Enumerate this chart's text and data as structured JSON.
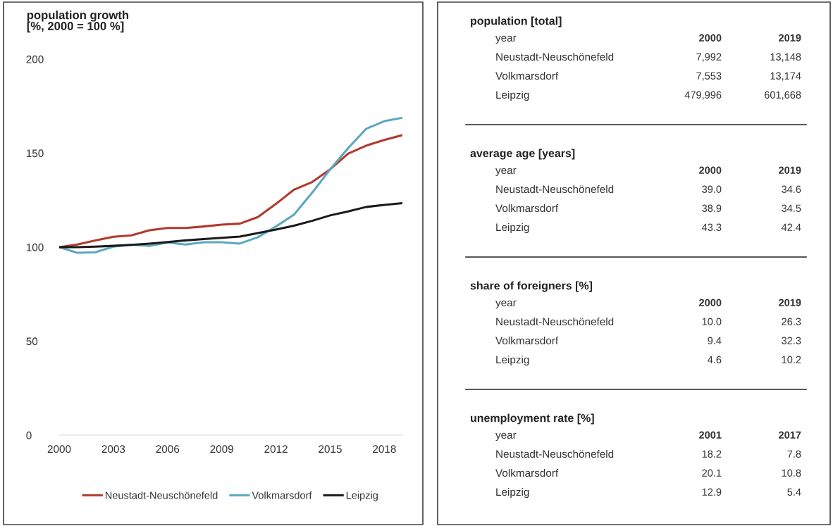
{
  "chart_data": [
    {
      "type": "line",
      "title": "population growth",
      "subtitle": "[%, 2000 = 100 %]",
      "x": [
        2000,
        2001,
        2002,
        2003,
        2004,
        2005,
        2006,
        2007,
        2008,
        2009,
        2010,
        2011,
        2012,
        2013,
        2014,
        2015,
        2016,
        2017,
        2018,
        2019
      ],
      "series": [
        {
          "name": "Neustadt-Neuschönefeld",
          "color": "#b03a2e",
          "values": [
            100,
            101.4,
            103.6,
            105.5,
            106.3,
            109,
            110.2,
            110.2,
            111,
            112,
            112.5,
            116,
            123,
            130.6,
            134.6,
            141.4,
            149.8,
            154,
            157,
            159.6
          ]
        },
        {
          "name": "Volkmarsdorf",
          "color": "#5ba8bf",
          "values": [
            100,
            97,
            97.3,
            100.3,
            101.3,
            100.7,
            102.5,
            101.4,
            102.6,
            102.6,
            101.9,
            105.3,
            111,
            117.3,
            128.9,
            141.4,
            152.7,
            163,
            167,
            168.8
          ]
        },
        {
          "name": "Leipzig",
          "color": "#1a1a1a",
          "values": [
            100,
            100,
            100.3,
            100.7,
            101.2,
            101.9,
            102.7,
            103.6,
            104.3,
            105,
            105.6,
            107.5,
            109.4,
            111.4,
            114,
            116.9,
            119,
            121.4,
            122.5,
            123.4
          ]
        }
      ],
      "xlim": [
        2000,
        2019
      ],
      "xticks": [
        2000,
        2003,
        2006,
        2009,
        2012,
        2015,
        2018
      ],
      "ylim": [
        0,
        200
      ],
      "yticks": [
        0,
        50,
        100,
        150,
        200
      ],
      "grid": false,
      "legend": "bottom",
      "line_style": "solid",
      "marker": "none"
    },
    {
      "type": "other",
      "annotations": [
        "population [total]",
        "year",
        "2000",
        "2019",
        "Neustadt-Neuschönefeld",
        "7,992",
        "13,148",
        "Volkmarsdorf",
        "7,553",
        "13,174",
        "Leipzig",
        "479,996",
        "601,668",
        "average age [years]",
        "year",
        "2000",
        "2019",
        "Neustadt-Neuschönefeld",
        "39.0",
        "34.6",
        "Volkmarsdorf",
        "38.9",
        "34.5",
        "Leipzig",
        "43.3",
        "42.4",
        "share of foreigners [%]",
        "year",
        "2000",
        "2019",
        "Neustadt-Neuschönefeld",
        "10.0",
        "26.3",
        "Volkmarsdorf",
        "9.4",
        "32.3",
        "Leipzig",
        "4.6",
        "10.2",
        "unemployment rate [%]",
        "year",
        "2001",
        "2017",
        "Neustadt-Neuschönefeld",
        "18.2",
        "7.8",
        "Volkmarsdorf",
        "20.1",
        "10.8",
        "Leipzig",
        "12.9",
        "5.4"
      ]
    }
  ]
}
